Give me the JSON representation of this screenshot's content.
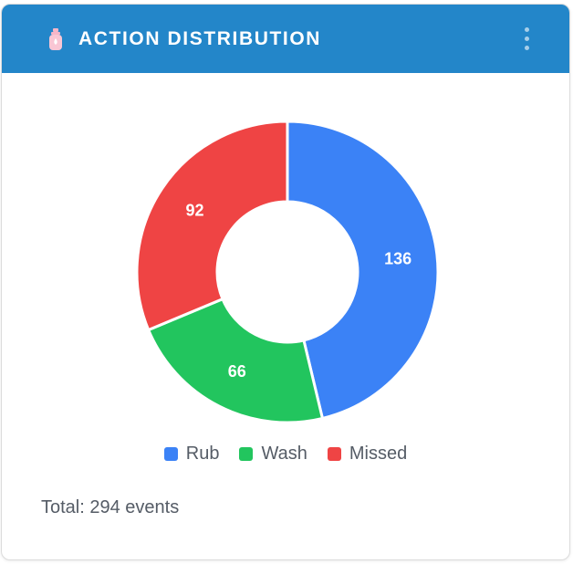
{
  "header": {
    "title": "ACTION DISTRIBUTION",
    "icon": "hand-sanitizer-icon",
    "menu_icon": "kebab-menu-icon"
  },
  "colors": {
    "header_bg": "#2386c9",
    "rub": "#3b82f6",
    "wash": "#22c55e",
    "missed": "#ef4444"
  },
  "chart_data": {
    "type": "pie",
    "donut": true,
    "categories": [
      "Rub",
      "Wash",
      "Missed"
    ],
    "values": [
      136,
      66,
      92
    ],
    "colors": [
      "#3b82f6",
      "#22c55e",
      "#ef4444"
    ],
    "legend_placement": "bottom"
  },
  "footer": {
    "total_text": "Total: 294 events"
  }
}
